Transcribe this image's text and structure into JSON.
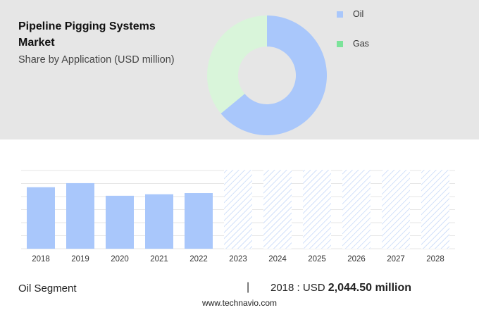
{
  "header": {
    "title": "Pipeline Pigging Systems Market",
    "subtitle": "Share by Application (USD million)"
  },
  "legend": [
    {
      "label": "Oil",
      "color": "#a9c7fb"
    },
    {
      "label": "Gas",
      "color": "#7ce39a"
    }
  ],
  "footer": {
    "segment": "Oil Segment",
    "divider": "|",
    "year_label": "2018 : USD",
    "value_label": "2,044.50 million",
    "site": "www.technavio.com"
  },
  "chart_data": [
    {
      "type": "pie",
      "style": "donut",
      "categories": [
        "Oil",
        "Gas"
      ],
      "values": [
        64,
        36
      ],
      "colors": [
        "#a9c7fb",
        "#d9f5da"
      ]
    },
    {
      "type": "bar",
      "categories": [
        "2018",
        "2019",
        "2020",
        "2021",
        "2022",
        "2023",
        "2024",
        "2025",
        "2026",
        "2027",
        "2028"
      ],
      "values": [
        2044.5,
        2180,
        1760,
        1810,
        1850,
        null,
        null,
        null,
        null,
        null,
        null
      ],
      "forecast_categories": [
        "2023",
        "2024",
        "2025",
        "2026",
        "2027",
        "2028"
      ],
      "color": "#a9c7fb",
      "ylim": [
        0,
        2600
      ],
      "grid": true
    }
  ]
}
